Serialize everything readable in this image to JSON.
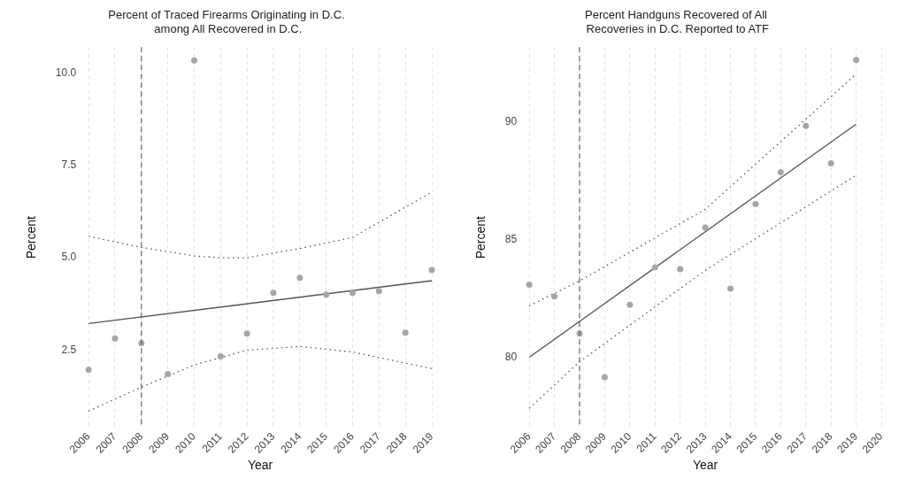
{
  "chart_data": [
    {
      "type": "scatter",
      "title": "Percent of Traced Firearms Originating in D.C.\n among All Recovered in D.C.",
      "xlabel": "Year",
      "ylabel": "Percent",
      "xlim": [
        2006,
        2019
      ],
      "xticks": [
        2006,
        2007,
        2008,
        2009,
        2010,
        2011,
        2012,
        2013,
        2014,
        2015,
        2016,
        2017,
        2018,
        2019
      ],
      "ylim": [
        0.4,
        10.7
      ],
      "yticks": [
        {
          "value": 2.5,
          "label": "2.5"
        },
        {
          "value": 5,
          "label": "5.0"
        },
        {
          "value": 7.5,
          "label": "7.5"
        },
        {
          "value": 10,
          "label": "10.0"
        }
      ],
      "grid": "x",
      "legend": false,
      "ref_lines": [
        {
          "axis": "x",
          "value": 2008,
          "line_style": "dashed",
          "color": "#666666"
        }
      ],
      "series": [
        {
          "color": "#a6a6a6",
          "marker": "circle",
          "x": [
            2006,
            2007,
            2008,
            2009,
            2010,
            2011,
            2012,
            2013,
            2014,
            2015,
            2016,
            2017,
            2018,
            2019
          ],
          "values": [
            1.97,
            2.82,
            2.69,
            1.85,
            10.34,
            2.33,
            2.95,
            4.05,
            4.46,
            4.0,
            4.05,
            4.1,
            2.97,
            4.67
          ]
        },
        {
          "type": "line",
          "color": "#555555",
          "marker": "none",
          "line_style": "solid",
          "x": [
            2006,
            2019
          ],
          "values": [
            3.22,
            4.38
          ]
        },
        {
          "type": "line",
          "color": "#555555",
          "marker": "none",
          "line_style": "dotted",
          "x": [
            2006,
            2008,
            2010,
            2011,
            2012,
            2014,
            2016,
            2019
          ],
          "values": [
            5.58,
            5.28,
            5.05,
            5.0,
            5.0,
            5.25,
            5.55,
            6.78
          ]
        },
        {
          "type": "line",
          "color": "#555555",
          "marker": "none",
          "line_style": "dotted",
          "x": [
            2006,
            2008,
            2010,
            2012,
            2014,
            2016,
            2019
          ],
          "values": [
            0.85,
            1.5,
            2.1,
            2.5,
            2.6,
            2.45,
            2.0
          ]
        }
      ]
    },
    {
      "type": "scatter",
      "title": "Percent Handguns Recovered of All\n Recoveries in D.C. Reported to ATF",
      "xlabel": "Year",
      "ylabel": "Percent",
      "xlim": [
        2006,
        2020
      ],
      "xticks": [
        2006,
        2007,
        2008,
        2009,
        2010,
        2011,
        2012,
        2013,
        2014,
        2015,
        2016,
        2017,
        2018,
        2019,
        2020
      ],
      "ylim": [
        77,
        93.2
      ],
      "yticks": [
        80,
        85,
        90
      ],
      "grid": "x",
      "legend": false,
      "ref_lines": [
        {
          "axis": "x",
          "value": 2008,
          "line_style": "dashed",
          "color": "#666666"
        }
      ],
      "series": [
        {
          "color": "#a6a6a6",
          "marker": "circle",
          "x": [
            2006,
            2007,
            2008,
            2009,
            2010,
            2011,
            2012,
            2013,
            2014,
            2015,
            2016,
            2017,
            2018,
            2019
          ],
          "values": [
            83.09,
            82.59,
            81.01,
            79.15,
            82.23,
            83.83,
            83.75,
            85.52,
            82.92,
            86.52,
            87.88,
            89.84,
            88.25,
            92.65
          ]
        },
        {
          "type": "line",
          "color": "#555555",
          "marker": "none",
          "line_style": "solid",
          "x": [
            2006,
            2019
          ],
          "values": [
            80.0,
            89.92
          ]
        },
        {
          "type": "line",
          "color": "#555555",
          "marker": "none",
          "line_style": "dotted",
          "x": [
            2006,
            2008,
            2013,
            2019
          ],
          "values": [
            82.19,
            83.25,
            86.3,
            92.05
          ]
        },
        {
          "type": "line",
          "color": "#555555",
          "marker": "none",
          "line_style": "dotted",
          "x": [
            2006,
            2008,
            2013,
            2019
          ],
          "values": [
            77.83,
            79.81,
            83.7,
            87.75
          ]
        }
      ]
    }
  ]
}
